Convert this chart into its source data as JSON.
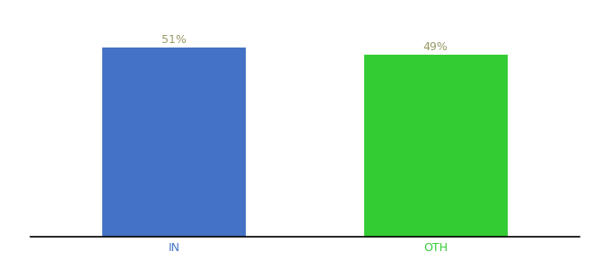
{
  "categories": [
    "IN",
    "OTH"
  ],
  "values": [
    51,
    49
  ],
  "bar_colors": [
    "#4472C4",
    "#33CC33"
  ],
  "label_texts": [
    "51%",
    "49%"
  ],
  "label_color": "#999966",
  "label_fontsize": 9,
  "xlabel_fontsize": 9,
  "xlabel_color": "#4472C4",
  "xlabel2_color": "#33CC33",
  "background_color": "#ffffff",
  "ylim": [
    0,
    58
  ],
  "bar_width": 0.55,
  "figsize": [
    6.8,
    3.0
  ],
  "dpi": 100
}
